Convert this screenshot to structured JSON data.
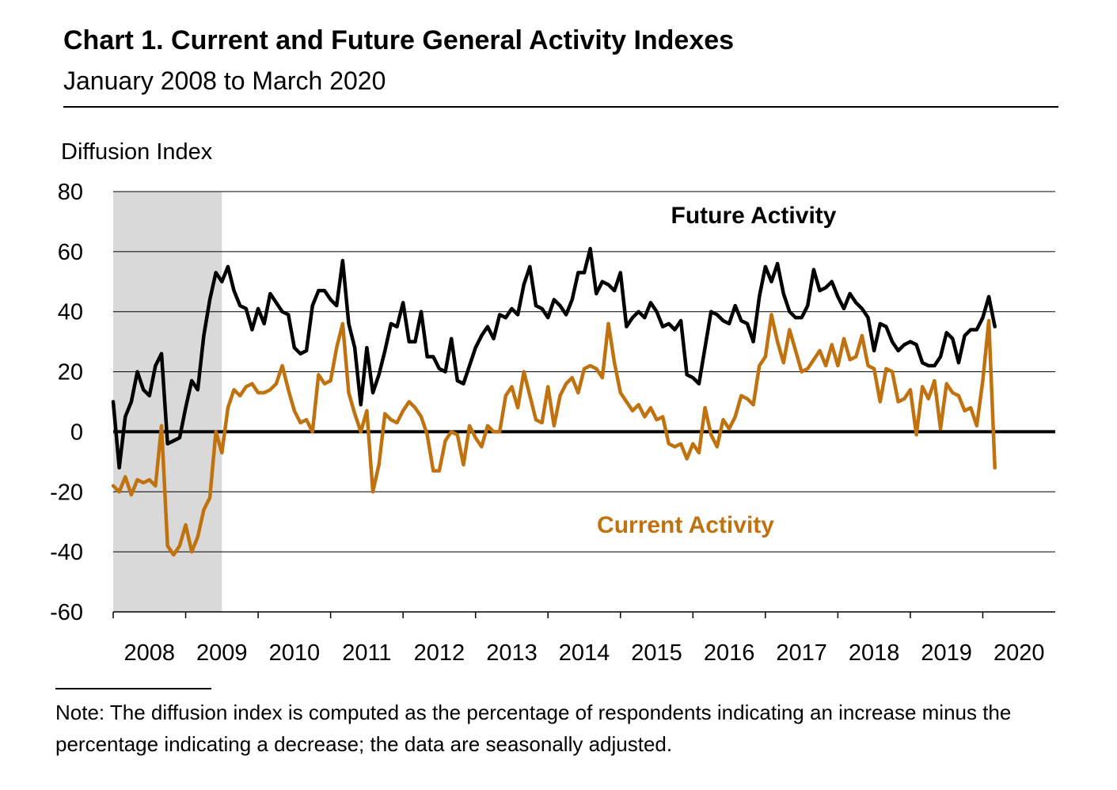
{
  "title": "Chart 1. Current and Future General Activity Indexes",
  "subtitle": "January 2008 to March 2020",
  "note": "Note: The diffusion index is computed as the percentage of respondents indicating an increase minus the percentage indicating a decrease; the data are seasonally adjusted.",
  "colors": {
    "future": "#000000",
    "current": "#c0720f",
    "recession": "#d9d9d9",
    "grid": "#000000"
  },
  "chart_data": {
    "type": "line",
    "title": "Chart 1. Current and Future General Activity Indexes",
    "subtitle": "January 2008 to March 2020",
    "ylabel": "Diffusion Index",
    "ylim": [
      -60,
      80
    ],
    "yticks": [
      -60,
      -40,
      -20,
      0,
      20,
      40,
      60,
      80
    ],
    "xlabels": [
      "2008",
      "2009",
      "2010",
      "2011",
      "2012",
      "2013",
      "2014",
      "2015",
      "2016",
      "2017",
      "2018",
      "2019",
      "2020"
    ],
    "x_start": "2008-01",
    "x_end": "2020-12",
    "recession": {
      "start": "2008-01",
      "end": "2009-06"
    },
    "grid": true,
    "series": [
      {
        "name": "Future Activity",
        "label": "Future Activity",
        "start": "2008-01",
        "values": [
          10,
          -12,
          5,
          10,
          20,
          14,
          12,
          22,
          26,
          -4,
          -3,
          -2,
          8,
          17,
          14,
          32,
          44,
          53,
          50,
          55,
          47,
          42,
          41,
          34,
          41,
          36,
          46,
          43,
          40,
          39,
          28,
          26,
          27,
          42,
          47,
          47,
          44,
          42,
          57,
          36,
          28,
          9,
          28,
          13,
          19,
          27,
          36,
          35,
          43,
          30,
          30,
          40,
          25,
          25,
          21,
          20,
          31,
          17,
          16,
          22,
          28,
          32,
          35,
          31,
          39,
          38,
          41,
          39,
          49,
          55,
          42,
          41,
          38,
          44,
          42,
          39,
          44,
          53,
          53,
          61,
          46,
          50,
          49,
          47,
          53,
          35,
          38,
          40,
          38,
          43,
          40,
          35,
          36,
          34,
          37,
          19,
          18,
          16,
          28,
          40,
          39,
          37,
          36,
          42,
          37,
          36,
          30,
          45,
          55,
          50,
          56,
          46,
          40,
          38,
          38,
          42,
          54,
          47,
          48,
          50,
          45,
          41,
          46,
          43,
          41,
          38,
          27,
          36,
          35,
          30,
          27,
          29,
          30,
          29,
          23,
          22,
          22,
          25,
          33,
          31,
          23,
          32,
          34,
          34,
          38,
          45,
          35
        ]
      },
      {
        "name": "Current Activity",
        "label": "Current Activity",
        "start": "2008-01",
        "values": [
          -18,
          -20,
          -15,
          -21,
          -16,
          -17,
          -16,
          -18,
          2,
          -38,
          -41,
          -38,
          -31,
          -40,
          -35,
          -26,
          -22,
          0,
          -7,
          8,
          14,
          12,
          15,
          16,
          13,
          13,
          14,
          16,
          22,
          14,
          7,
          3,
          4,
          0,
          19,
          16,
          17,
          28,
          36,
          13,
          6,
          0,
          7,
          -20,
          -11,
          6,
          4,
          3,
          7,
          10,
          8,
          5,
          -1,
          -13,
          -13,
          -3,
          0,
          -1,
          -11,
          2,
          -2,
          -5,
          2,
          0,
          0,
          12,
          15,
          8,
          20,
          12,
          4,
          3,
          15,
          2,
          12,
          16,
          18,
          13,
          21,
          22,
          21,
          18,
          36,
          23,
          13,
          10,
          7,
          9,
          5,
          8,
          4,
          5,
          -4,
          -5,
          -4,
          -9,
          -4,
          -7,
          8,
          -1,
          -5,
          4,
          1,
          5,
          12,
          11,
          9,
          22,
          25,
          39,
          30,
          23,
          34,
          27,
          20,
          21,
          24,
          27,
          22,
          29,
          22,
          31,
          24,
          25,
          32,
          22,
          21,
          10,
          21,
          20,
          10,
          11,
          14,
          -1,
          15,
          11,
          17,
          1,
          16,
          13,
          12,
          7,
          8,
          2,
          17,
          37,
          -12
        ]
      }
    ]
  }
}
